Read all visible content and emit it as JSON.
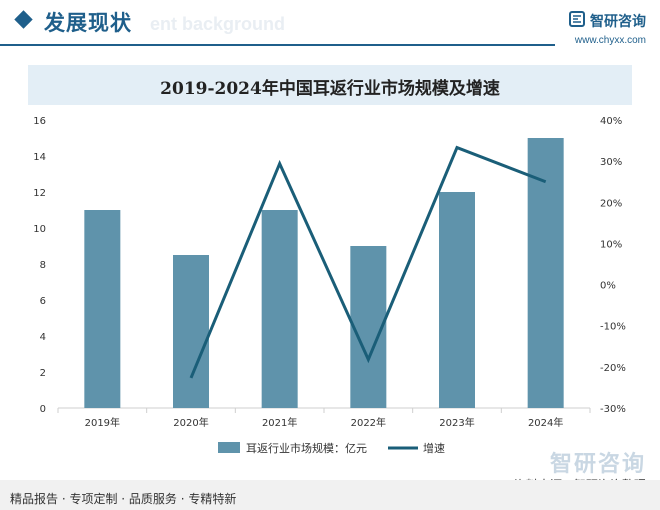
{
  "header": {
    "title": "发展现状",
    "bg_word": "ent background",
    "brand_name": "智研咨询",
    "brand_url": "www.chyxx.com"
  },
  "footer": {
    "left_text": "精品报告 · 专项定制 · 品质服务 · 专精特新",
    "source_text": "资料来源：智研咨询整理",
    "brand_watermark": "智研咨询"
  },
  "colors": {
    "accent": "#1f5f8b",
    "bar": "#5f93ab",
    "line": "#1a5e78"
  },
  "chart_data": {
    "type": "bar",
    "title": "2019-2024年中国耳返行业市场规模及增速",
    "categories": [
      "2019年",
      "2020年",
      "2021年",
      "2022年",
      "2023年",
      "2024年"
    ],
    "series": [
      {
        "name": "耳返行业市场规模：亿元",
        "type": "bar",
        "axis": "left",
        "values": [
          11,
          8.5,
          11,
          9,
          12,
          15
        ]
      },
      {
        "name": "增速",
        "type": "line",
        "axis": "right",
        "values": [
          null,
          -22.7,
          29.4,
          -18.2,
          33.3,
          25.0
        ]
      }
    ],
    "y_left": {
      "min": 0,
      "max": 16,
      "ticks": [
        "0",
        "2",
        "4",
        "6",
        "8",
        "10",
        "12",
        "14",
        "16"
      ]
    },
    "y_right": {
      "min": -30,
      "max": 40,
      "ticks": [
        "-30%",
        "-20%",
        "-10%",
        "0%",
        "10%",
        "20%",
        "30%",
        "40%"
      ]
    },
    "legend_position": "bottom",
    "grid": false
  }
}
